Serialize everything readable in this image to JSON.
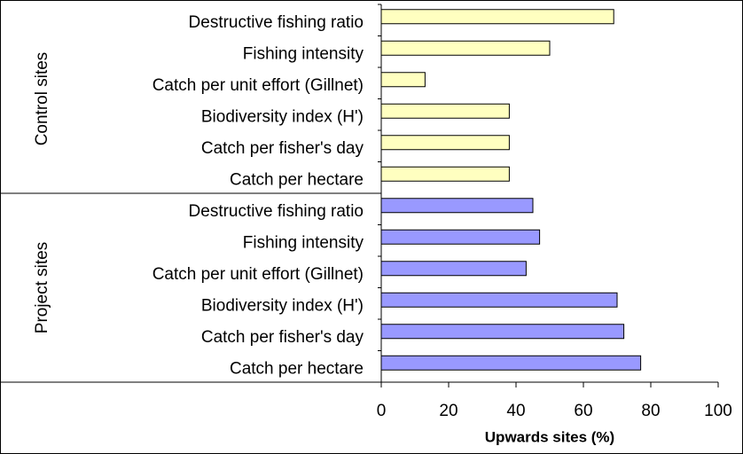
{
  "chart_data": {
    "type": "bar",
    "orientation": "horizontal",
    "x_label": "Upwards sites (%)",
    "xlim": [
      0,
      100
    ],
    "xticks": [
      0,
      20,
      40,
      60,
      80,
      100
    ],
    "grid": false,
    "groups": [
      {
        "name": "Control sites",
        "color": "#ffffc0",
        "categories": [
          "Destructive fishing ratio",
          "Fishing intensity",
          "Catch per unit effort (Gillnet)",
          "Biodiversity index (H')",
          "Catch per fisher's day",
          "Catch per hectare"
        ],
        "values": [
          69,
          50,
          13,
          38,
          38,
          38
        ]
      },
      {
        "name": "Project sites",
        "color": "#9999ff",
        "categories": [
          "Destructive fishing ratio",
          "Fishing intensity",
          "Catch per unit effort (Gillnet)",
          "Biodiversity index (H')",
          "Catch per fisher's day",
          "Catch per hectare"
        ],
        "values": [
          45,
          47,
          43,
          70,
          72,
          77
        ]
      }
    ]
  }
}
